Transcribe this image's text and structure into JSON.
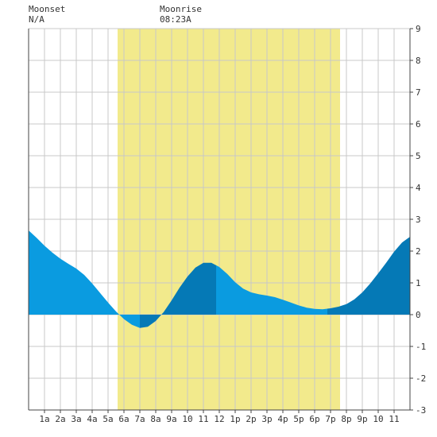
{
  "header": {
    "moonset_label": "Moonset",
    "moonset_value": "N/A",
    "moonrise_label": "Moonrise",
    "moonrise_value": "08:23A"
  },
  "chart_data": {
    "type": "area",
    "title": "",
    "xlabel": "",
    "ylabel": "",
    "xlim": [
      0,
      24
    ],
    "ylim": [
      -3,
      9
    ],
    "x_ticks": [
      "1a",
      "2a",
      "3a",
      "4a",
      "5a",
      "6a",
      "7a",
      "8a",
      "9a",
      "10",
      "11",
      "12",
      "1p",
      "2p",
      "3p",
      "4p",
      "5p",
      "6p",
      "7p",
      "8p",
      "9p",
      "10",
      "11"
    ],
    "y_ticks": [
      "-3",
      "-2",
      "-1",
      "0",
      "1",
      "2",
      "3",
      "4",
      "5",
      "6",
      "7",
      "8",
      "9"
    ],
    "grid": true,
    "daylight_hours": [
      5.6,
      19.6
    ],
    "moonrise_hour": 8.38,
    "colors": {
      "daylight": "#f2ea8c",
      "tide_light": "#0a9be0",
      "tide_dark": "#0579b6",
      "grid": "#c8c8c8",
      "axis": "#444444"
    },
    "series": [
      {
        "x": [
          0,
          0.5,
          1,
          1.5,
          2,
          2.5,
          3,
          3.5,
          4,
          4.5,
          5,
          5.5,
          6,
          6.5,
          7,
          7.5,
          8,
          8.5,
          9,
          9.5,
          10,
          10.5,
          11,
          11.5,
          12,
          12.5,
          13,
          13.5,
          14,
          14.5,
          15,
          15.5,
          16,
          16.5,
          17,
          17.5,
          18,
          18.5,
          19,
          19.5,
          20,
          20.5,
          21,
          21.5,
          22,
          22.5,
          23,
          23.5,
          24
        ],
        "values": [
          2.65,
          2.42,
          2.17,
          1.95,
          1.76,
          1.6,
          1.45,
          1.25,
          0.98,
          0.68,
          0.38,
          0.1,
          -0.14,
          -0.32,
          -0.42,
          -0.38,
          -0.2,
          0.08,
          0.45,
          0.85,
          1.2,
          1.48,
          1.63,
          1.63,
          1.5,
          1.28,
          1.02,
          0.82,
          0.7,
          0.64,
          0.6,
          0.55,
          0.47,
          0.38,
          0.29,
          0.22,
          0.18,
          0.17,
          0.2,
          0.25,
          0.33,
          0.48,
          0.7,
          0.98,
          1.3,
          1.63,
          1.98,
          2.27,
          2.45
        ]
      }
    ],
    "shade_bands": [
      {
        "from": 0,
        "to": 7.0,
        "tone": "light"
      },
      {
        "from": 7.0,
        "to": 8.9,
        "tone": "dark"
      },
      {
        "from": 8.9,
        "to": 11.8,
        "tone": "dark"
      },
      {
        "from": 11.8,
        "to": 18.8,
        "tone": "light"
      },
      {
        "from": 18.8,
        "to": 24,
        "tone": "dark"
      }
    ]
  }
}
